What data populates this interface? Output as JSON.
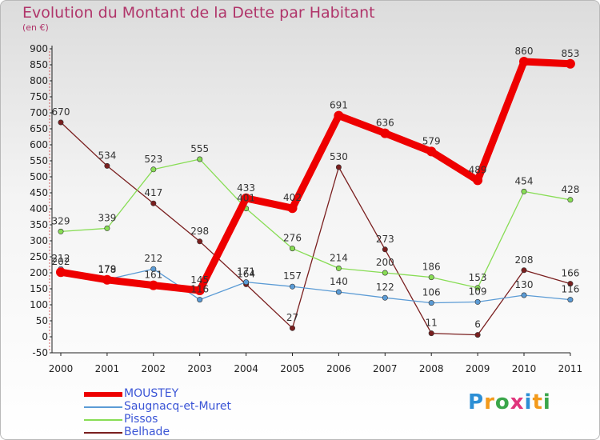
{
  "title": "Evolution du Montant de la Dette par Habitant",
  "subtitle": "(en €)",
  "logo_text": "Proxiti",
  "logo_colors": [
    "#2d8fd5",
    "#f39a1b",
    "#3aa64a",
    "#e0357c",
    "#2d8fd5",
    "#f39a1b",
    "#3aa64a"
  ],
  "chart_data": {
    "type": "line",
    "title": "Evolution du Montant de la Dette par Habitant",
    "ylabel": "(en €)",
    "x": [
      "2000",
      "2001",
      "2002",
      "2003",
      "2004",
      "2005",
      "2006",
      "2007",
      "2008",
      "2009",
      "2010",
      "2011"
    ],
    "ylim": [
      -50,
      900
    ],
    "yticks": [
      -50,
      0,
      50,
      100,
      150,
      200,
      250,
      300,
      350,
      400,
      450,
      500,
      550,
      600,
      650,
      700,
      750,
      800,
      850,
      900
    ],
    "grid": false,
    "legend_position": "bottom-left",
    "series": [
      {
        "name": "MOUSTEY",
        "color": "#ee0000",
        "values": [
          202,
          178,
          161,
          145,
          433,
          402,
          691,
          636,
          579,
          489,
          860,
          853
        ],
        "labels": [
          "202",
          "178",
          "161",
          "145",
          "433",
          "402",
          "691",
          "636",
          "579",
          "489",
          "860",
          "853"
        ]
      },
      {
        "name": "Saugnacq-et-Muret",
        "color": "#5b9bd5",
        "values": [
          212,
          179,
          212,
          116,
          171,
          157,
          140,
          122,
          106,
          109,
          130,
          116
        ],
        "labels": [
          "212",
          "179",
          "212",
          "116",
          "171",
          "157",
          "140",
          "122",
          "106",
          "109",
          "130",
          "116"
        ]
      },
      {
        "name": "Pissos",
        "color": "#88dd55",
        "values": [
          329,
          339,
          523,
          555,
          401,
          276,
          214,
          200,
          186,
          153,
          454,
          428
        ],
        "labels": [
          "329",
          "339",
          "523",
          "555",
          "401",
          "276",
          "214",
          "200",
          "186",
          "153",
          "454",
          "428"
        ]
      },
      {
        "name": "Belhade",
        "color": "#7a1f1f",
        "values": [
          670,
          534,
          417,
          298,
          164,
          27,
          530,
          273,
          11,
          6,
          208,
          166
        ],
        "labels": [
          "670",
          "534",
          "417",
          "298",
          "164",
          "27",
          "530",
          "273",
          "11",
          "6",
          "208",
          "166"
        ]
      }
    ]
  },
  "legend": [
    {
      "name": "MOUSTEY",
      "color": "#ee0000"
    },
    {
      "name": "Saugnacq-et-Muret",
      "color": "#5b9bd5"
    },
    {
      "name": "Pissos",
      "color": "#88dd55"
    },
    {
      "name": "Belhade",
      "color": "#7a1f1f"
    }
  ]
}
